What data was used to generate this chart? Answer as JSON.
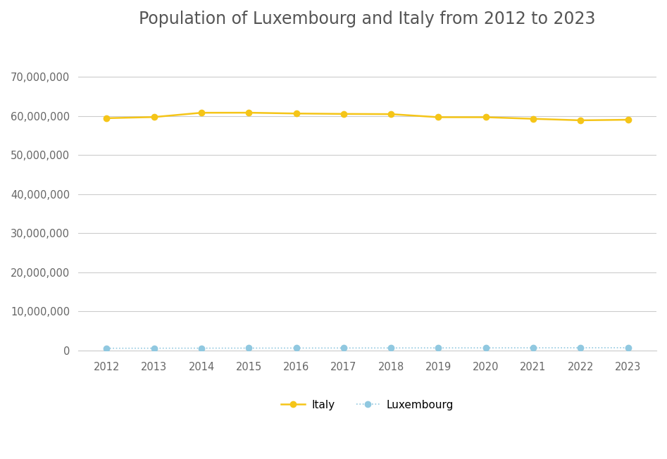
{
  "title": "Population of Luxembourg and Italy from 2012 to 2023",
  "years": [
    2012,
    2013,
    2014,
    2015,
    2016,
    2017,
    2018,
    2019,
    2020,
    2021,
    2022,
    2023
  ],
  "italy": [
    59394207,
    59685227,
    60782668,
    60795612,
    60589445,
    60483973,
    60431283,
    59641488,
    59641488,
    59236213,
    58850717,
    58997201
  ],
  "luxembourg": [
    537039,
    549680,
    562958,
    576249,
    590667,
    602005,
    613894,
    626108,
    632275,
    645397,
    660809,
    672050
  ],
  "italy_color": "#F5C518",
  "luxembourg_color": "#90C8E0",
  "italy_label": "Italy",
  "luxembourg_label": "Luxembourg",
  "background_color": "#FFFFFF",
  "title_color": "#555555",
  "title_fontsize": 17,
  "ylim": [
    0,
    78000000
  ],
  "yticks": [
    0,
    10000000,
    20000000,
    30000000,
    40000000,
    50000000,
    60000000,
    70000000
  ],
  "grid_color": "#CCCCCC",
  "marker": "o",
  "italy_linewidth": 1.8,
  "luxembourg_linewidth": 1.2,
  "italy_linestyle": "-",
  "luxembourg_linestyle": ":",
  "markersize": 6
}
